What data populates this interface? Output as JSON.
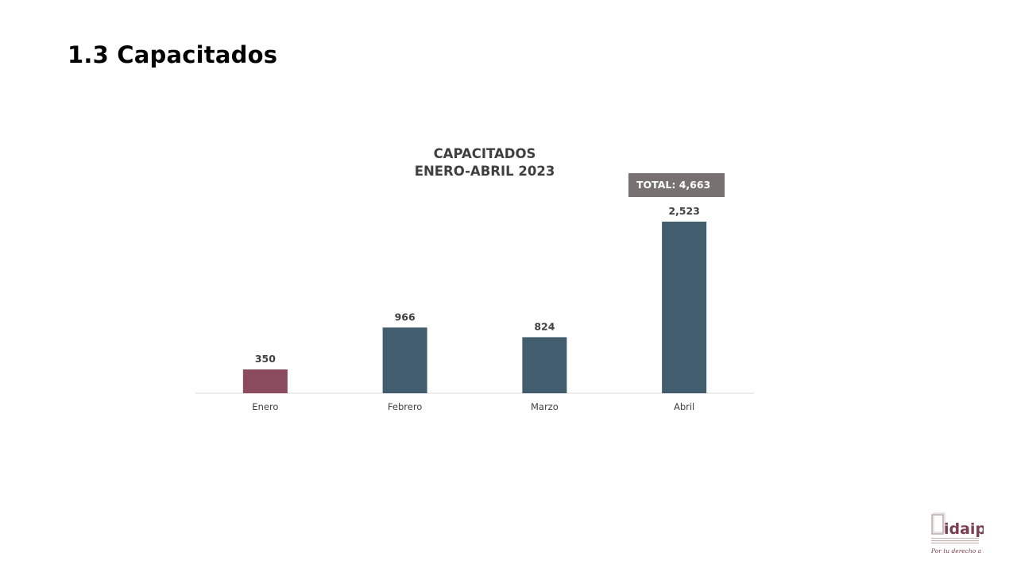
{
  "slide": {
    "title": "1.3 Capacitados"
  },
  "chart_data": {
    "type": "bar",
    "title": [
      "CAPACITADOS",
      "ENERO-ABRIL 2023"
    ],
    "categories": [
      "Enero",
      "Febrero",
      "Marzo",
      "Abril"
    ],
    "values": [
      350,
      966,
      824,
      2523
    ],
    "data_labels": [
      "350",
      "966",
      "824",
      "2,523"
    ],
    "bar_colors": [
      "#8b4b5e",
      "#425d6e",
      "#425d6e",
      "#425d6e"
    ],
    "ylim": [
      0,
      2523
    ],
    "grid": false,
    "annotation": "TOTAL: 4,663",
    "annotation_color": "#777171"
  },
  "logo": {
    "text": "idaip",
    "tagline": "Por tu derecho a saber",
    "color": "#7a3e4f"
  }
}
